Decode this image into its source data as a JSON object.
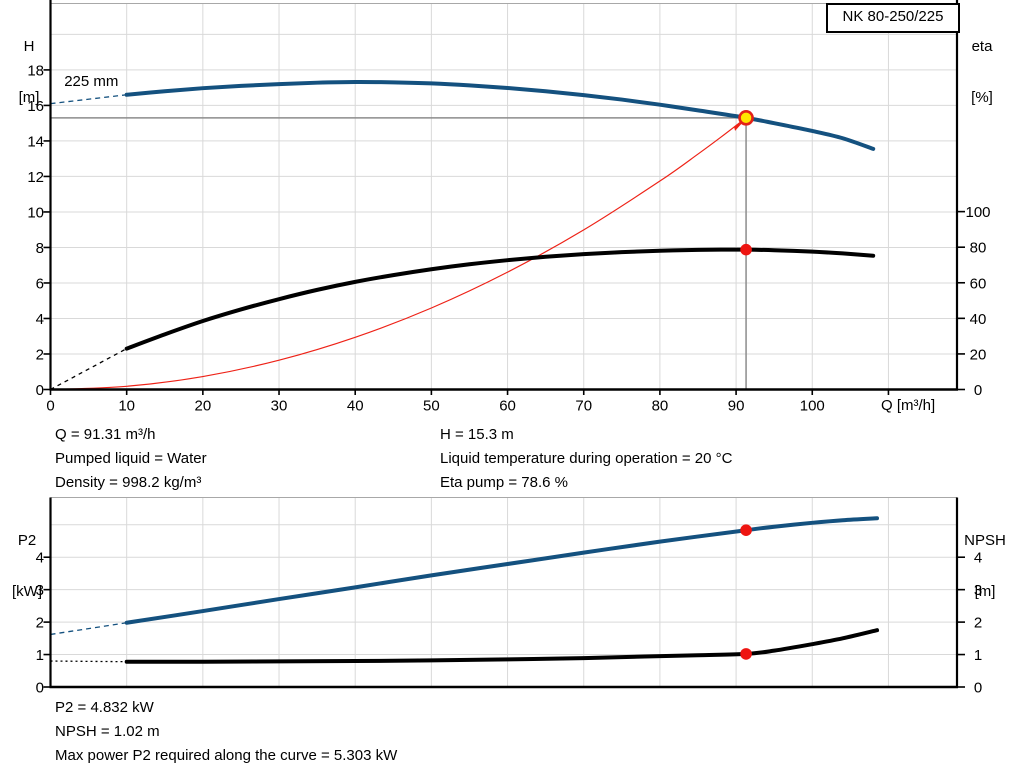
{
  "header": {
    "pump_model": "NK 80-250/225"
  },
  "info_panel": {
    "left": [
      "Q = 91.31 m³/h",
      "Pumped liquid = Water",
      "Density = 998.2 kg/m³"
    ],
    "right": [
      "H = 15.3 m",
      "Liquid temperature during operation = 20 °C",
      "Eta pump = 78.6 %"
    ]
  },
  "footer_panel": {
    "lines": [
      "P2 = 4.832 kW",
      "NPSH = 1.02 m",
      "Max power P2 required along the curve = 5.303 kW"
    ]
  },
  "chart_data": [
    {
      "type": "line",
      "name": "qh-efficiency-chart",
      "axis_labels": {
        "left": [
          "H",
          "[m]"
        ],
        "right": [
          "eta",
          "[%]"
        ],
        "x": "Q [m³/h]"
      },
      "x_range": [
        0,
        119
      ],
      "y_left_range": [
        0,
        21.74
      ],
      "y_right_range": [
        0,
        217
      ],
      "x_gridlines": [
        10,
        20,
        30,
        40,
        50,
        60,
        70,
        80,
        90,
        100,
        110
      ],
      "y_gridlines": [
        2,
        4,
        6,
        8,
        10,
        12,
        14,
        16,
        18,
        20
      ],
      "x_tick_values": [
        0,
        10,
        20,
        30,
        40,
        50,
        60,
        70,
        80,
        90,
        100
      ],
      "y_left_ticks": [
        0,
        2,
        4,
        6,
        8,
        10,
        12,
        14,
        16,
        18
      ],
      "y_right_ticks": [
        0,
        20,
        40,
        60,
        80,
        100
      ],
      "grid": true,
      "crosshair": {
        "q": 91.31,
        "v": 15.3
      },
      "annotations": [
        {
          "name": "impeller-diameter-label",
          "text": "225 mm",
          "q": 1.8,
          "v": 17.1
        }
      ],
      "series": [
        {
          "name": "system-curve",
          "axis": "left",
          "color": "#ee2217",
          "width": 1.2,
          "points": [
            [
              0,
              0
            ],
            [
              10,
              0.18
            ],
            [
              20,
              0.73
            ],
            [
              30,
              1.65
            ],
            [
              40,
              2.94
            ],
            [
              50,
              4.59
            ],
            [
              60,
              6.61
            ],
            [
              70,
              8.99
            ],
            [
              80,
              11.74
            ],
            [
              85,
              13.26
            ],
            [
              88,
              14.21
            ],
            [
              91.31,
              15.3
            ]
          ]
        },
        {
          "name": "efficiency-curve",
          "axis": "right",
          "color": "#000000",
          "width": 4,
          "lead": [
            [
              0,
              0
            ],
            [
              10,
              23
            ]
          ],
          "lead_dash": "4 4",
          "points": [
            [
              10,
              23
            ],
            [
              15,
              31
            ],
            [
              20,
              38.5
            ],
            [
              25,
              45
            ],
            [
              30,
              50.8
            ],
            [
              35,
              56
            ],
            [
              40,
              60.5
            ],
            [
              45,
              64.3
            ],
            [
              50,
              67.6
            ],
            [
              55,
              70.4
            ],
            [
              60,
              72.7
            ],
            [
              65,
              74.6
            ],
            [
              70,
              76.1
            ],
            [
              75,
              77.2
            ],
            [
              80,
              78.0
            ],
            [
              85,
              78.5
            ],
            [
              88,
              78.65
            ],
            [
              91.31,
              78.6
            ],
            [
              95,
              78.3
            ],
            [
              100,
              77.5
            ],
            [
              104,
              76.5
            ],
            [
              108,
              75.2
            ]
          ]
        },
        {
          "name": "head-curve",
          "label": "225 mm",
          "axis": "left",
          "color": "#14517f",
          "width": 4,
          "lead": [
            [
              0,
              16.1
            ],
            [
              10,
              16.6
            ]
          ],
          "lead_dash": "5 4",
          "points": [
            [
              10,
              16.6
            ],
            [
              15,
              16.8
            ],
            [
              20,
              16.97
            ],
            [
              25,
              17.1
            ],
            [
              30,
              17.2
            ],
            [
              35,
              17.28
            ],
            [
              40,
              17.32
            ],
            [
              45,
              17.3
            ],
            [
              50,
              17.24
            ],
            [
              55,
              17.13
            ],
            [
              60,
              16.98
            ],
            [
              65,
              16.8
            ],
            [
              70,
              16.58
            ],
            [
              75,
              16.33
            ],
            [
              80,
              16.04
            ],
            [
              85,
              15.72
            ],
            [
              91.31,
              15.3
            ],
            [
              95,
              15.0
            ],
            [
              100,
              14.56
            ],
            [
              104,
              14.15
            ],
            [
              108,
              13.55
            ]
          ]
        }
      ],
      "markers": [
        {
          "name": "duty-point",
          "q": 91.31,
          "axis": "left",
          "v": 15.3,
          "style": "yellow-ring"
        },
        {
          "name": "efficiency-point",
          "q": 91.31,
          "axis": "right",
          "v": 78.6,
          "style": "red-dot"
        }
      ]
    },
    {
      "type": "line",
      "name": "power-npsh-chart",
      "axis_labels": {
        "left": [
          "P2",
          "[kW]"
        ],
        "right": [
          "NPSH",
          "[m]"
        ],
        "x": ""
      },
      "x_range": [
        0,
        119
      ],
      "y_left_range": [
        0,
        5.84
      ],
      "y_right_range": [
        0,
        5.84
      ],
      "x_gridlines": [
        10,
        20,
        30,
        40,
        50,
        60,
        70,
        80,
        90,
        100,
        110
      ],
      "y_gridlines": [
        1,
        2,
        3,
        4,
        5
      ],
      "x_tick_values": [],
      "y_left_ticks": [
        0,
        1,
        2,
        3,
        4
      ],
      "y_right_ticks": [
        0,
        1,
        2,
        3,
        4
      ],
      "grid": true,
      "series": [
        {
          "name": "p2-curve",
          "axis": "left",
          "color": "#14517f",
          "width": 4,
          "lead": [
            [
              0,
              1.62
            ],
            [
              10,
              1.98
            ]
          ],
          "lead_dash": "5 4",
          "points": [
            [
              10,
              1.98
            ],
            [
              20,
              2.34
            ],
            [
              30,
              2.71
            ],
            [
              40,
              3.07
            ],
            [
              50,
              3.44
            ],
            [
              60,
              3.79
            ],
            [
              70,
              4.14
            ],
            [
              80,
              4.48
            ],
            [
              91.31,
              4.832
            ],
            [
              95,
              4.94
            ],
            [
              100,
              5.06
            ],
            [
              104,
              5.14
            ],
            [
              108.5,
              5.2
            ]
          ]
        },
        {
          "name": "npsh-curve",
          "axis": "right",
          "color": "#000000",
          "width": 4,
          "lead": [
            [
              0,
              0.8
            ],
            [
              10,
              0.78
            ]
          ],
          "lead_dash": "2 3",
          "points": [
            [
              10,
              0.78
            ],
            [
              20,
              0.78
            ],
            [
              30,
              0.79
            ],
            [
              40,
              0.8
            ],
            [
              50,
              0.82
            ],
            [
              60,
              0.85
            ],
            [
              70,
              0.89
            ],
            [
              78,
              0.94
            ],
            [
              85,
              0.98
            ],
            [
              91.31,
              1.02
            ],
            [
              95,
              1.12
            ],
            [
              100,
              1.32
            ],
            [
              104,
              1.5
            ],
            [
              108.5,
              1.75
            ]
          ]
        }
      ],
      "markers": [
        {
          "name": "p2-point",
          "q": 91.31,
          "axis": "left",
          "v": 4.832,
          "style": "red-dot"
        },
        {
          "name": "npsh-point",
          "q": 91.31,
          "axis": "right",
          "v": 1.02,
          "style": "red-dot"
        }
      ]
    }
  ]
}
